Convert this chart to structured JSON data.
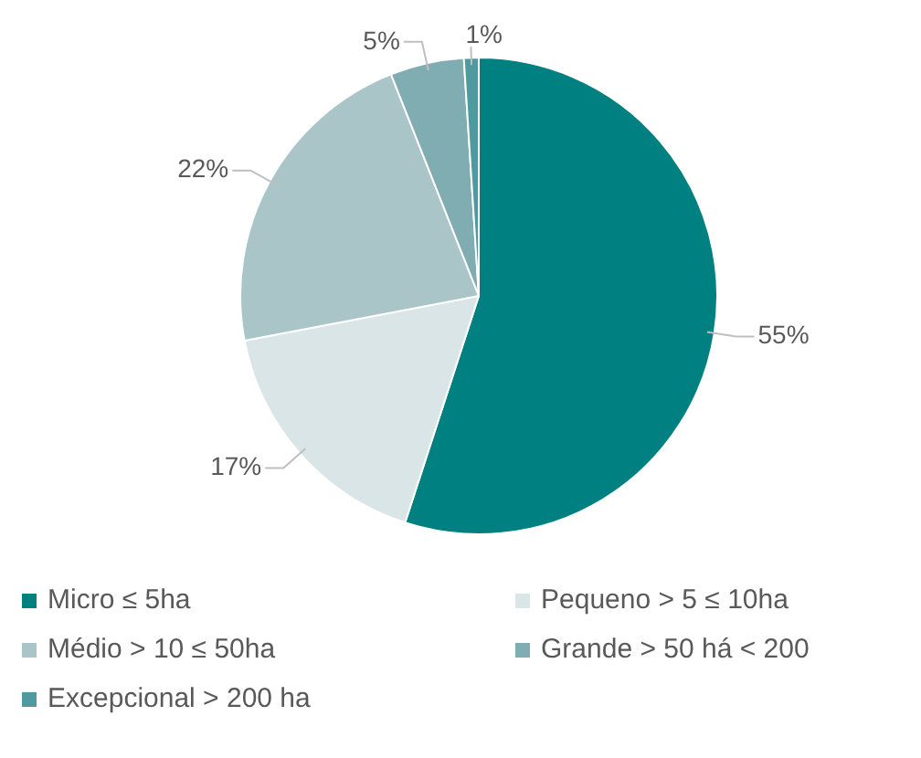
{
  "chart_data": {
    "type": "pie",
    "categories": [
      "Micro ≤ 5ha",
      "Pequeno > 5 ≤ 10ha",
      "Médio > 10 ≤ 50ha",
      "Grande > 50 há < 200",
      "Excepcional > 200 ha"
    ],
    "values": [
      55,
      17,
      22,
      5,
      1
    ],
    "colors": [
      "#008080",
      "#d9e5e6",
      "#aac5c8",
      "#7fadb2",
      "#4f9a9e"
    ],
    "value_labels": [
      "55%",
      "17%",
      "22%",
      "5%",
      "1%"
    ],
    "legend": "bottom"
  }
}
